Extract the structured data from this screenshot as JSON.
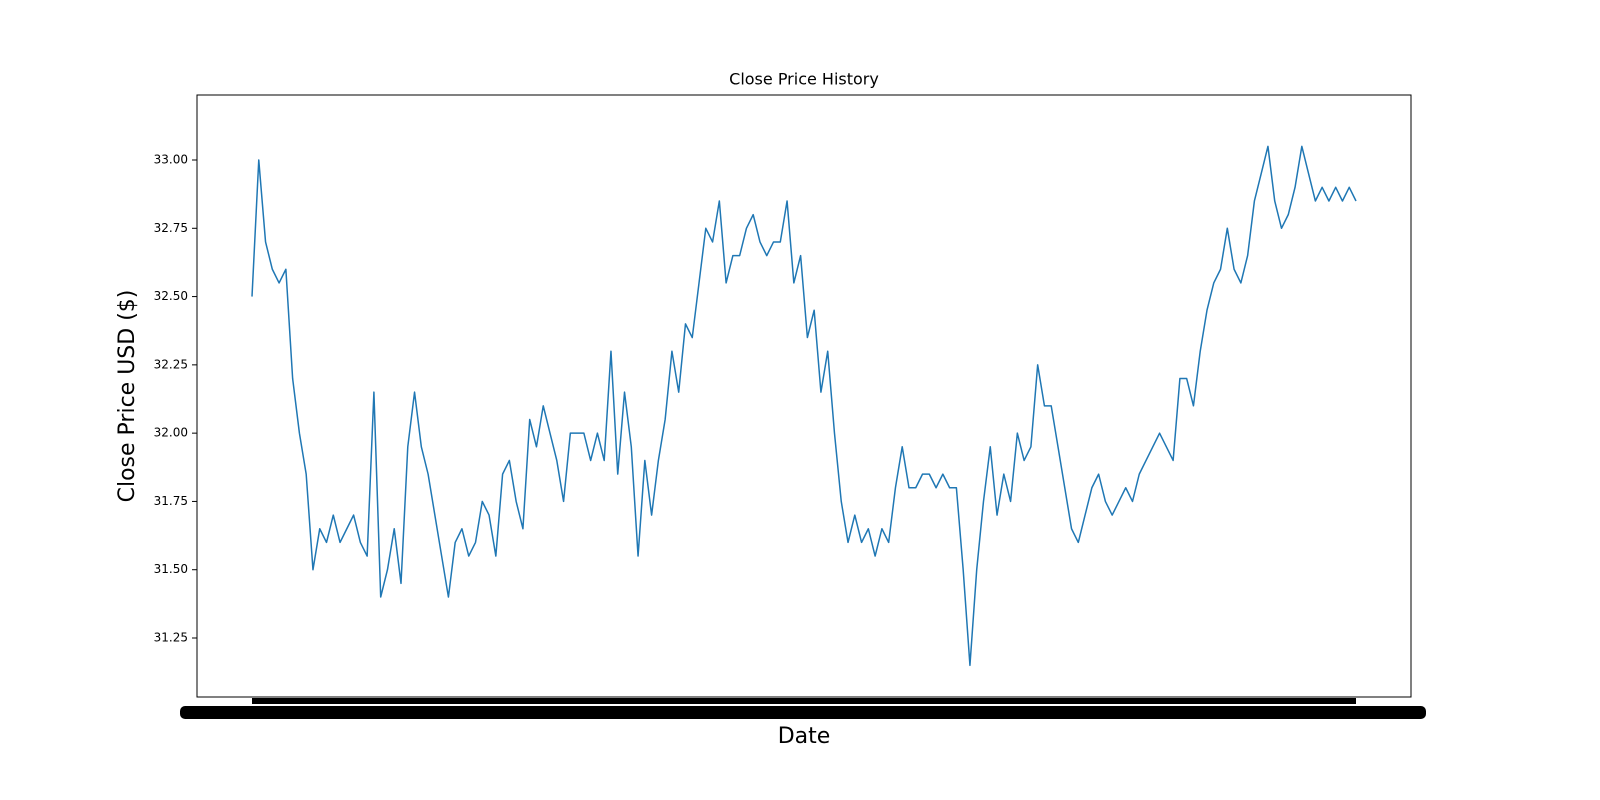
{
  "chart_data": {
    "type": "line",
    "title": "Close Price History",
    "xlabel": "Date",
    "ylabel": "Close Price USD ($)",
    "categories": [
      null,
      null,
      null,
      null,
      null,
      null,
      null,
      null,
      null,
      null,
      null,
      null,
      null,
      null,
      null,
      null,
      null,
      null,
      null,
      null,
      null,
      null,
      null,
      null,
      null,
      null,
      null,
      null,
      null,
      null,
      null,
      null,
      null,
      null,
      null,
      null,
      null,
      null,
      null,
      null,
      null,
      null,
      null,
      null,
      null,
      null,
      null,
      null,
      null,
      null,
      null,
      null,
      null,
      null,
      null,
      null,
      null,
      null,
      null,
      null,
      null,
      null,
      null,
      null,
      null,
      null,
      null,
      null,
      null,
      null,
      null,
      null,
      null,
      null,
      null,
      null,
      null,
      null,
      null,
      null,
      null,
      null,
      null,
      null,
      null,
      null,
      null,
      null,
      null,
      null,
      null,
      null,
      null,
      null,
      null,
      null,
      null,
      null,
      null,
      null,
      null,
      null,
      null,
      null,
      null,
      null,
      null,
      null,
      null,
      null,
      null,
      null,
      null,
      null,
      null,
      null,
      null,
      null,
      null,
      null,
      null,
      null,
      null,
      null,
      null,
      null,
      null,
      null,
      null,
      null,
      null,
      null,
      null,
      null,
      null,
      null,
      null,
      null,
      null,
      null,
      null,
      null,
      null,
      null,
      null,
      null,
      null,
      null,
      null,
      null,
      null,
      null,
      null,
      null,
      null,
      null,
      null,
      null,
      null,
      null,
      null,
      null,
      null,
      null
    ],
    "values": [
      32.5,
      33.0,
      32.7,
      32.6,
      32.55,
      32.6,
      32.2,
      32.0,
      31.85,
      31.5,
      31.65,
      31.6,
      31.7,
      31.6,
      31.65,
      31.7,
      31.6,
      31.55,
      32.15,
      31.4,
      31.5,
      31.65,
      31.45,
      31.95,
      32.15,
      31.95,
      31.85,
      31.7,
      31.55,
      31.4,
      31.6,
      31.65,
      31.55,
      31.6,
      31.75,
      31.7,
      31.55,
      31.85,
      31.9,
      31.75,
      31.65,
      32.05,
      31.95,
      32.1,
      32.0,
      31.9,
      31.75,
      32.0,
      32.0,
      32.0,
      31.9,
      32.0,
      31.9,
      32.3,
      31.85,
      32.15,
      31.95,
      31.55,
      31.9,
      31.7,
      31.9,
      32.05,
      32.3,
      32.15,
      32.4,
      32.35,
      32.55,
      32.75,
      32.7,
      32.85,
      32.55,
      32.65,
      32.65,
      32.75,
      32.8,
      32.7,
      32.65,
      32.7,
      32.7,
      32.85,
      32.55,
      32.65,
      32.35,
      32.45,
      32.15,
      32.3,
      32.0,
      31.75,
      31.6,
      31.7,
      31.6,
      31.65,
      31.55,
      31.65,
      31.6,
      31.8,
      31.95,
      31.8,
      31.8,
      31.85,
      31.85,
      31.8,
      31.85,
      31.8,
      31.8,
      31.5,
      31.15,
      31.5,
      31.75,
      31.95,
      31.7,
      31.85,
      31.75,
      32.0,
      31.9,
      31.95,
      32.25,
      32.1,
      32.1,
      31.95,
      31.8,
      31.65,
      31.6,
      31.7,
      31.8,
      31.85,
      31.75,
      31.7,
      31.75,
      31.8,
      31.75,
      31.85,
      31.9,
      31.95,
      32.0,
      31.95,
      31.9,
      32.2,
      32.2,
      32.1,
      32.3,
      32.45,
      32.55,
      32.6,
      32.75,
      32.6,
      32.55,
      32.65,
      32.85,
      32.95,
      33.05,
      32.85,
      32.75,
      32.8,
      32.9,
      33.05,
      32.95,
      32.85,
      32.9,
      32.85,
      32.9,
      32.85,
      32.9,
      32.85
    ],
    "color": "#1f77b4",
    "ylim": [
      31.034,
      33.238
    ],
    "yticks": [
      31.25,
      {
        "value": 31.5,
        "label": "31.50"
      },
      31.75,
      {
        "value": 32,
        "label": "32.00"
      },
      32.25,
      {
        "value": 32.5,
        "label": "32.50"
      },
      32.75,
      {
        "value": 33,
        "label": "33.00"
      }
    ]
  }
}
